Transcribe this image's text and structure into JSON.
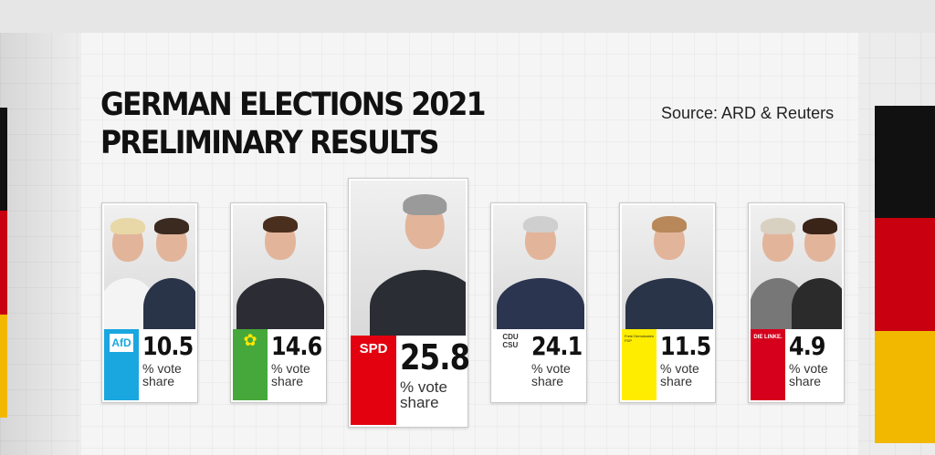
{
  "title_line1": "GERMAN ELECTIONS 2021",
  "title_line2": "PRELIMINARY RESULTS",
  "source": "Source: ARD & Reuters",
  "vote_unit_line1": "% vote",
  "vote_unit_line2": "share",
  "colors": {
    "afd": "#1aa6de",
    "greens": "#46a83a",
    "spd": "#e3000f",
    "cdu": "#ffffff",
    "fdp": "#ffed00",
    "linke": "#d6001c",
    "flag_black": "#111111",
    "flag_red": "#c8000f",
    "flag_gold": "#f2b800"
  },
  "chart_data": {
    "type": "table",
    "title": "GERMAN ELECTIONS 2021 PRELIMINARY RESULTS",
    "source": "Source: ARD & Reuters",
    "unit": "% vote share",
    "categories": [
      "AfD",
      "Greens",
      "SPD",
      "CDU/CSU",
      "FDP",
      "Die Linke"
    ],
    "values": [
      10.5,
      14.6,
      25.8,
      24.1,
      11.5,
      4.9
    ],
    "value_labels": [
      "10.5",
      "14.6",
      "25.8",
      "24.1",
      "11.5",
      "4.9"
    ],
    "logo_text": [
      "AfD",
      "✿",
      "SPD",
      "CDU\nCSU",
      "Freie Demokraten FDP",
      "DIE LINKE."
    ]
  }
}
